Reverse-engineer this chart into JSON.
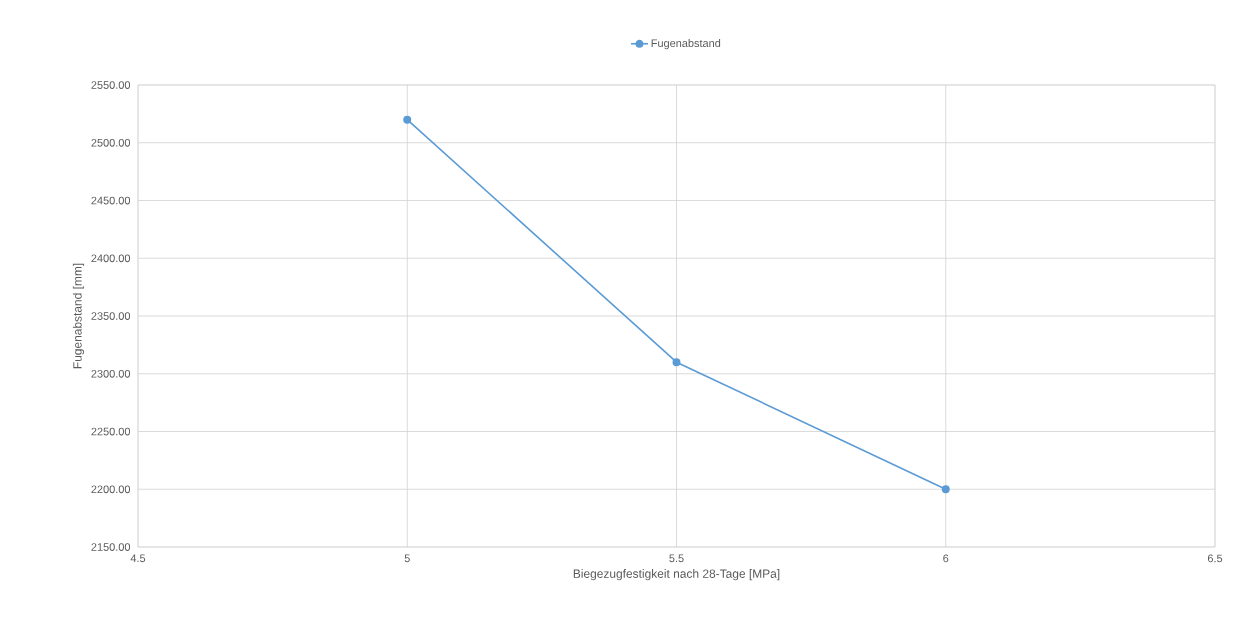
{
  "chart_data": {
    "type": "line",
    "xlabel": "Biegezugfestigkeit nach 28-Tage [MPa]",
    "ylabel": "Fugenabstand [mm]",
    "x": [
      5,
      5.5,
      6
    ],
    "series": [
      {
        "name": "Fugenabstand",
        "color": "#5b9bd5",
        "values": [
          2520,
          2310,
          2200
        ]
      }
    ],
    "xlim": [
      4.5,
      6.5
    ],
    "xticks": [
      4.5,
      5,
      5.5,
      6,
      6.5
    ],
    "ylim": [
      2150,
      2550
    ],
    "yticks": [
      {
        "value": 2150,
        "label": "2150.00"
      },
      {
        "value": 2200,
        "label": "2200.00"
      },
      {
        "value": 2250,
        "label": "2250.00"
      },
      {
        "value": 2300,
        "label": "2300.00"
      },
      {
        "value": 2350,
        "label": "2350.00"
      },
      {
        "value": 2400,
        "label": "2400.00"
      },
      {
        "value": 2450,
        "label": "2450.00"
      },
      {
        "value": 2500,
        "label": "2500.00"
      },
      {
        "value": 2550,
        "label": "2550.00"
      }
    ],
    "grid": true,
    "legend": "top",
    "marker": "circle",
    "line_style": "solid"
  }
}
